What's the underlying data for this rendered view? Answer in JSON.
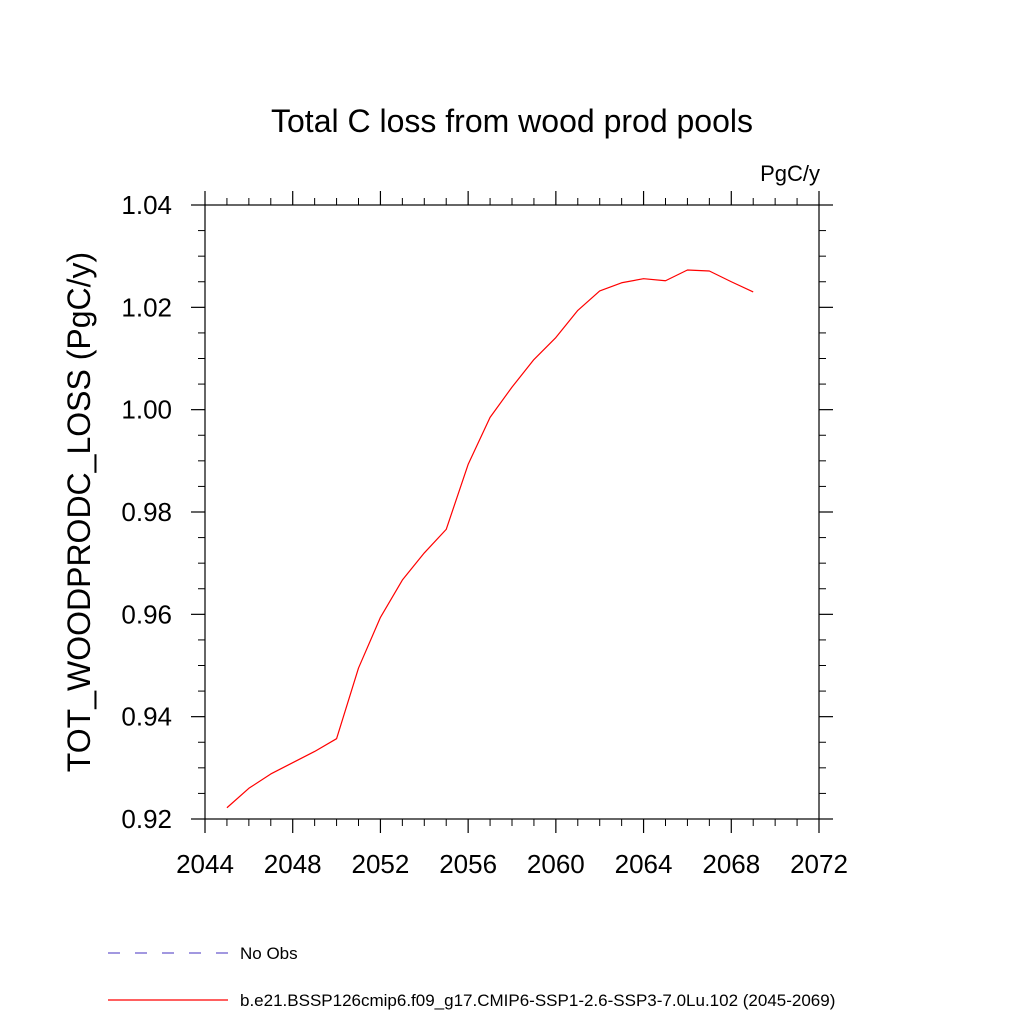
{
  "chart_data": {
    "type": "line",
    "title": "Total C loss from wood prod pools",
    "units": "PgC/y",
    "xlabel": "",
    "ylabel": "TOT_WOODPRODC_LOSS  (PgC/y)",
    "xlim": [
      2044,
      2072
    ],
    "ylim": [
      0.92,
      1.04
    ],
    "x_ticks": [
      2044,
      2048,
      2052,
      2056,
      2060,
      2064,
      2068,
      2072
    ],
    "x_tick_labels": [
      "2044",
      "2048",
      "2052",
      "2056",
      "2060",
      "2064",
      "2068",
      "2072"
    ],
    "x_minor_step": 1,
    "y_ticks": [
      0.92,
      0.94,
      0.96,
      0.98,
      1.0,
      1.02,
      1.04
    ],
    "y_tick_labels": [
      "0.92",
      "0.94",
      "0.96",
      "0.98",
      "1.00",
      "1.02",
      "1.04"
    ],
    "y_minor_step": 0.005,
    "grid": false,
    "series": [
      {
        "name": "b.e21.BSSP126cmip6.f09_g17.CMIP6-SSP1-2.6-SSP3-7.0Lu.102 (2045-2069)",
        "color": "#ff0000",
        "style": "solid",
        "x": [
          2045,
          2046,
          2047,
          2048,
          2049,
          2050,
          2051,
          2052,
          2053,
          2054,
          2055,
          2056,
          2057,
          2058,
          2059,
          2060,
          2061,
          2062,
          2063,
          2064,
          2065,
          2066,
          2067,
          2068,
          2069
        ],
        "y": [
          0.9222,
          0.926,
          0.9288,
          0.931,
          0.9332,
          0.9357,
          0.9495,
          0.9594,
          0.9667,
          0.972,
          0.9766,
          0.9893,
          0.9985,
          1.0044,
          1.0098,
          1.0141,
          1.0194,
          1.0232,
          1.0248,
          1.0256,
          1.0252,
          1.0273,
          1.0271,
          1.025,
          1.023
        ]
      }
    ],
    "legend": {
      "placement": "bottom",
      "entries": [
        {
          "label": "No Obs",
          "color": "#6a5acd",
          "style": "dashed"
        },
        {
          "label": "b.e21.BSSP126cmip6.f09_g17.CMIP6-SSP1-2.6-SSP3-7.0Lu.102 (2045-2069)",
          "color": "#ff0000",
          "style": "solid"
        }
      ]
    }
  }
}
